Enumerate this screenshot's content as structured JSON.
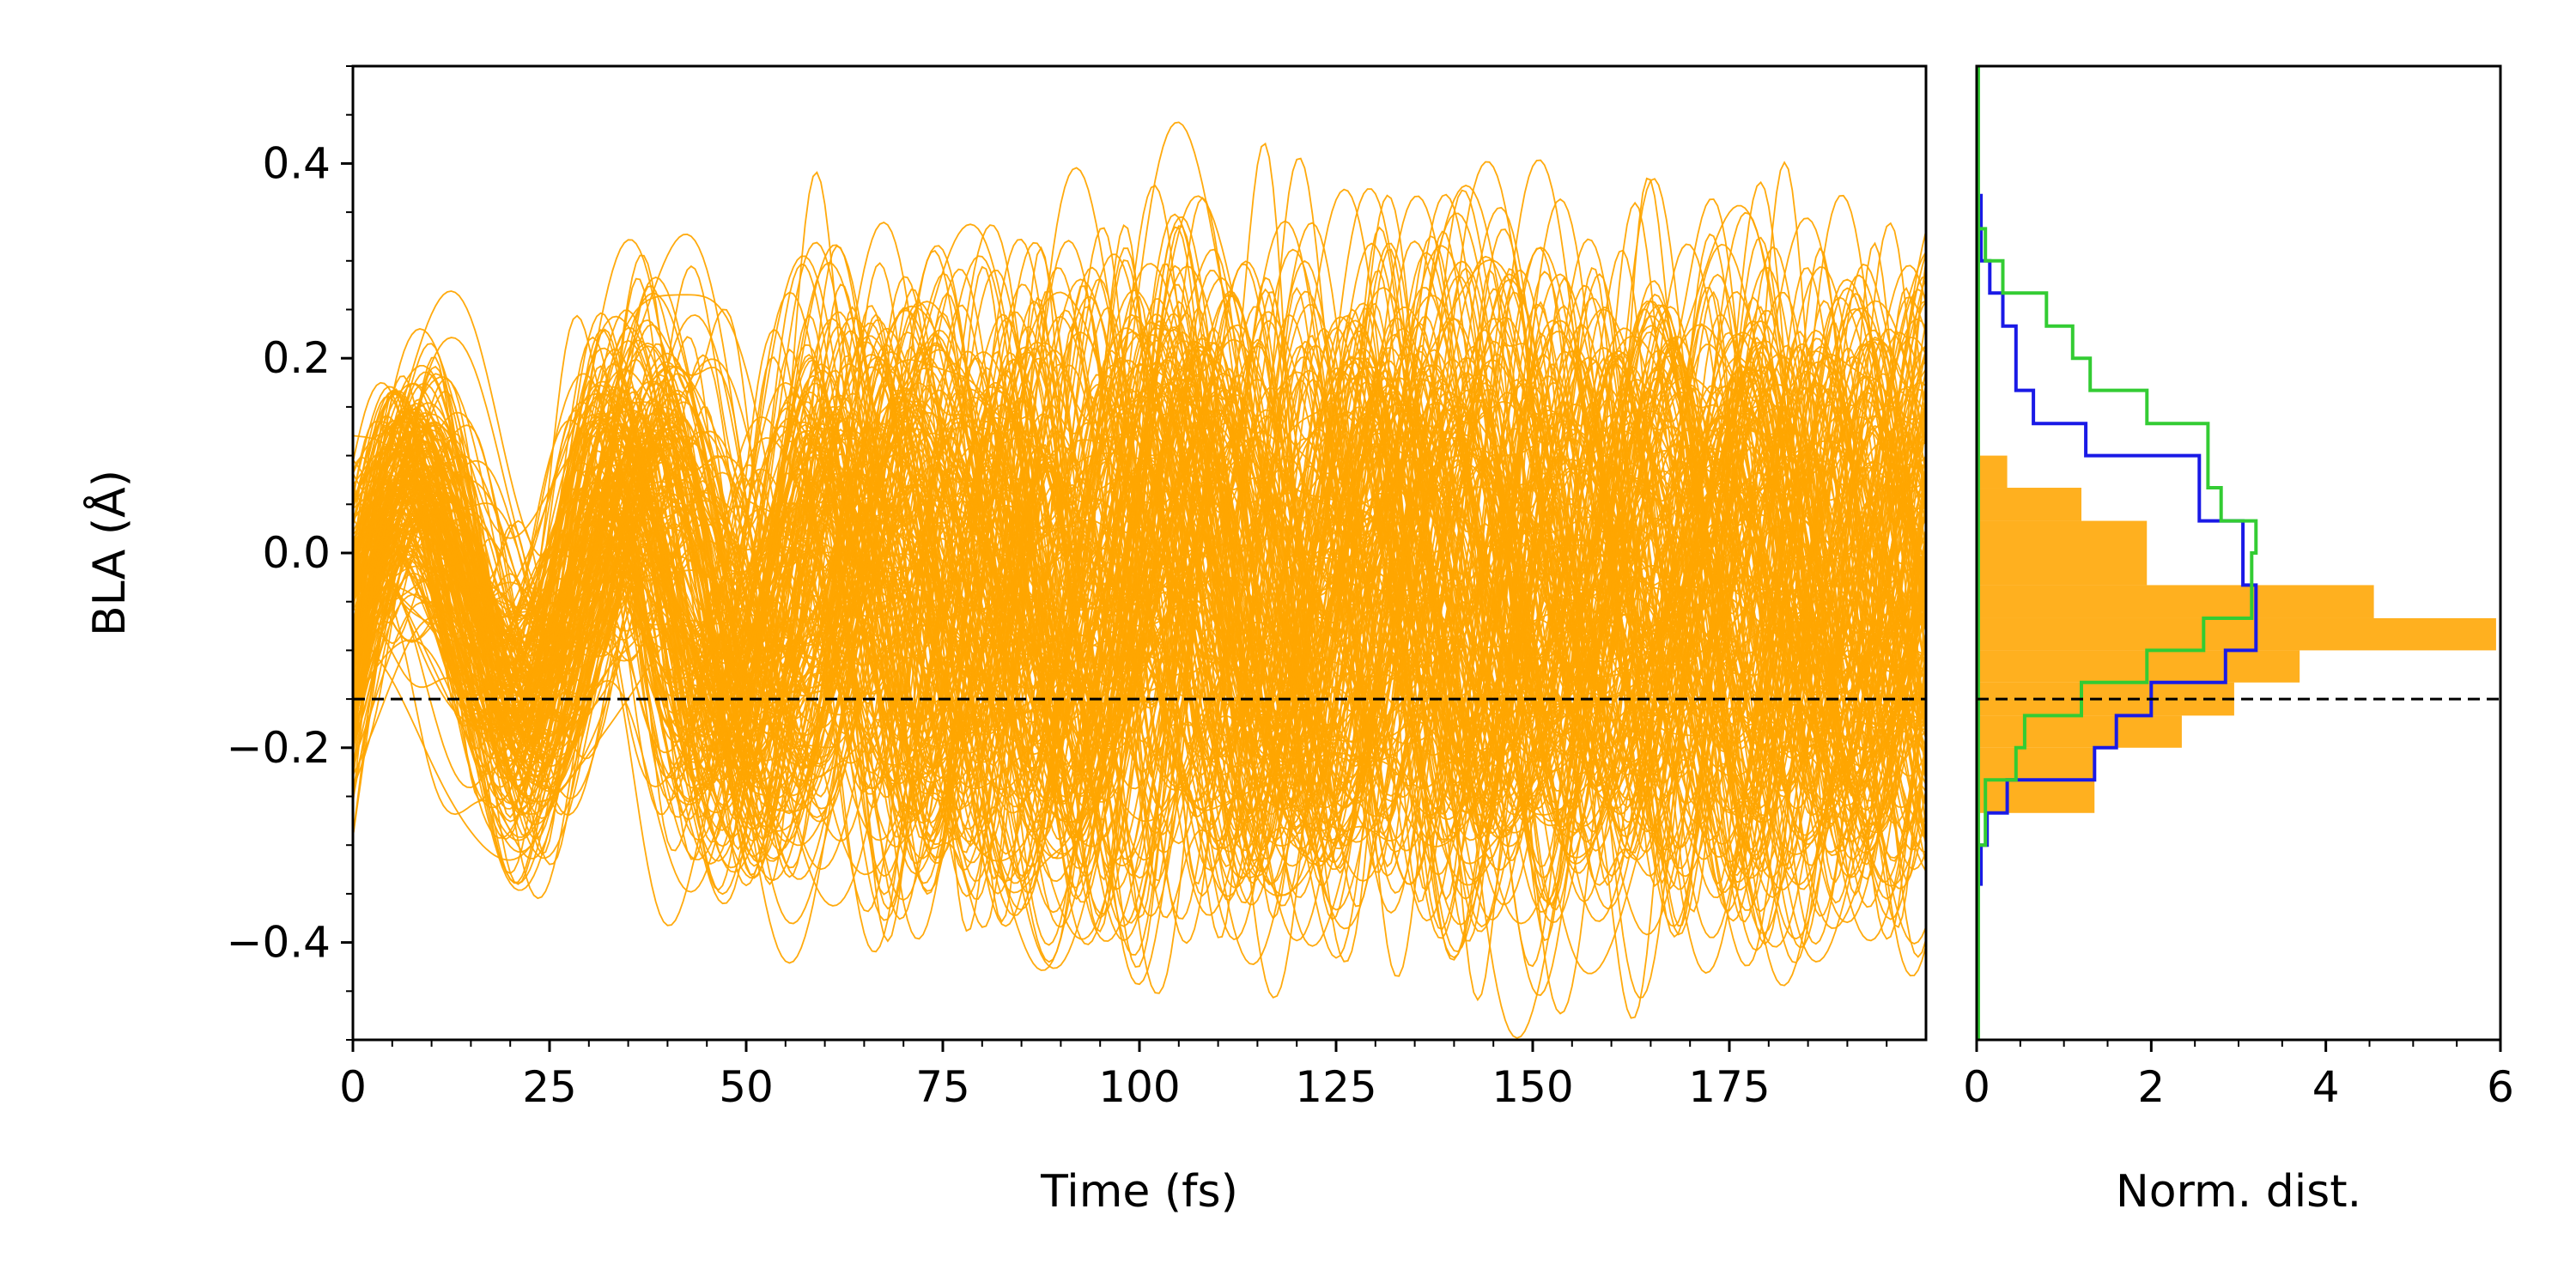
{
  "chart_data": [
    {
      "type": "line",
      "xlabel": "Time (fs)",
      "ylabel": "BLA (Å)",
      "xlim": [
        0,
        200
      ],
      "ylim": [
        -0.5,
        0.5
      ],
      "x_ticks": [
        "0",
        "25",
        "50",
        "75",
        "100",
        "125",
        "150",
        "175"
      ],
      "y_ticks": [
        "−0.4",
        "−0.2",
        "0.0",
        "0.2",
        "0.4"
      ],
      "series_color": "#FFA500",
      "reference_line": {
        "y": -0.15,
        "style": "dashed",
        "color": "#000000"
      },
      "trajectory_count": 200,
      "grid": false
    },
    {
      "type": "histogram",
      "orientation": "horizontal",
      "xlabel": "Norm. dist.",
      "xlim": [
        0,
        6
      ],
      "ylim": [
        -0.5,
        0.5
      ],
      "x_ticks": [
        "0",
        "2",
        "4",
        "6"
      ],
      "reference_line": {
        "y": -0.15,
        "style": "dashed",
        "color": "#000000"
      },
      "grid": false,
      "orange_fill": {
        "color": "#FFA500",
        "bins": [
          {
            "y0": -0.267,
            "y1": -0.2,
            "value": 1.35
          },
          {
            "y0": -0.2,
            "y1": -0.167,
            "value": 2.35
          },
          {
            "y0": -0.167,
            "y1": -0.133,
            "value": 2.95
          },
          {
            "y0": -0.133,
            "y1": -0.1,
            "value": 3.7
          },
          {
            "y0": -0.1,
            "y1": -0.067,
            "value": 5.95
          },
          {
            "y0": -0.067,
            "y1": -0.033,
            "value": 4.55
          },
          {
            "y0": -0.033,
            "y1": 0.033,
            "value": 1.95
          },
          {
            "y0": 0.033,
            "y1": 0.067,
            "value": 1.2
          },
          {
            "y0": 0.067,
            "y1": 0.1,
            "value": 0.35
          },
          {
            "y0": 0.1,
            "y1": 0.1,
            "value": 0.35
          }
        ]
      },
      "blue_step": {
        "color": "#1A1AE6",
        "bins": [
          {
            "y0": -0.34,
            "y1": -0.3,
            "value": 0.05
          },
          {
            "y0": -0.3,
            "y1": -0.267,
            "value": 0.12
          },
          {
            "y0": -0.267,
            "y1": -0.233,
            "value": 0.35
          },
          {
            "y0": -0.233,
            "y1": -0.2,
            "value": 1.35
          },
          {
            "y0": -0.2,
            "y1": -0.167,
            "value": 1.6
          },
          {
            "y0": -0.167,
            "y1": -0.133,
            "value": 2.0
          },
          {
            "y0": -0.133,
            "y1": -0.1,
            "value": 2.85
          },
          {
            "y0": -0.1,
            "y1": -0.033,
            "value": 3.2
          },
          {
            "y0": -0.033,
            "y1": 0.033,
            "value": 3.05
          },
          {
            "y0": 0.033,
            "y1": 0.1,
            "value": 2.55
          },
          {
            "y0": 0.1,
            "y1": 0.133,
            "value": 1.25
          },
          {
            "y0": 0.133,
            "y1": 0.167,
            "value": 0.65
          },
          {
            "y0": 0.167,
            "y1": 0.233,
            "value": 0.45
          },
          {
            "y0": 0.233,
            "y1": 0.267,
            "value": 0.3
          },
          {
            "y0": 0.267,
            "y1": 0.3,
            "value": 0.15
          },
          {
            "y0": 0.3,
            "y1": 0.367,
            "value": 0.05
          }
        ]
      },
      "green_step": {
        "color": "#33CC33",
        "bins": [
          {
            "y0": -0.3,
            "y1": -0.233,
            "value": 0.1
          },
          {
            "y0": -0.233,
            "y1": -0.2,
            "value": 0.45
          },
          {
            "y0": -0.2,
            "y1": -0.167,
            "value": 0.55
          },
          {
            "y0": -0.167,
            "y1": -0.133,
            "value": 1.2
          },
          {
            "y0": -0.133,
            "y1": -0.1,
            "value": 1.95
          },
          {
            "y0": -0.1,
            "y1": -0.067,
            "value": 2.6
          },
          {
            "y0": -0.067,
            "y1": 0.0,
            "value": 3.15
          },
          {
            "y0": 0.0,
            "y1": 0.033,
            "value": 3.2
          },
          {
            "y0": 0.033,
            "y1": 0.067,
            "value": 2.8
          },
          {
            "y0": 0.067,
            "y1": 0.133,
            "value": 2.65
          },
          {
            "y0": 0.133,
            "y1": 0.167,
            "value": 1.95
          },
          {
            "y0": 0.167,
            "y1": 0.2,
            "value": 1.3
          },
          {
            "y0": 0.2,
            "y1": 0.233,
            "value": 1.1
          },
          {
            "y0": 0.233,
            "y1": 0.267,
            "value": 0.8
          },
          {
            "y0": 0.267,
            "y1": 0.3,
            "value": 0.3
          },
          {
            "y0": 0.3,
            "y1": 0.333,
            "value": 0.1
          }
        ]
      }
    }
  ]
}
